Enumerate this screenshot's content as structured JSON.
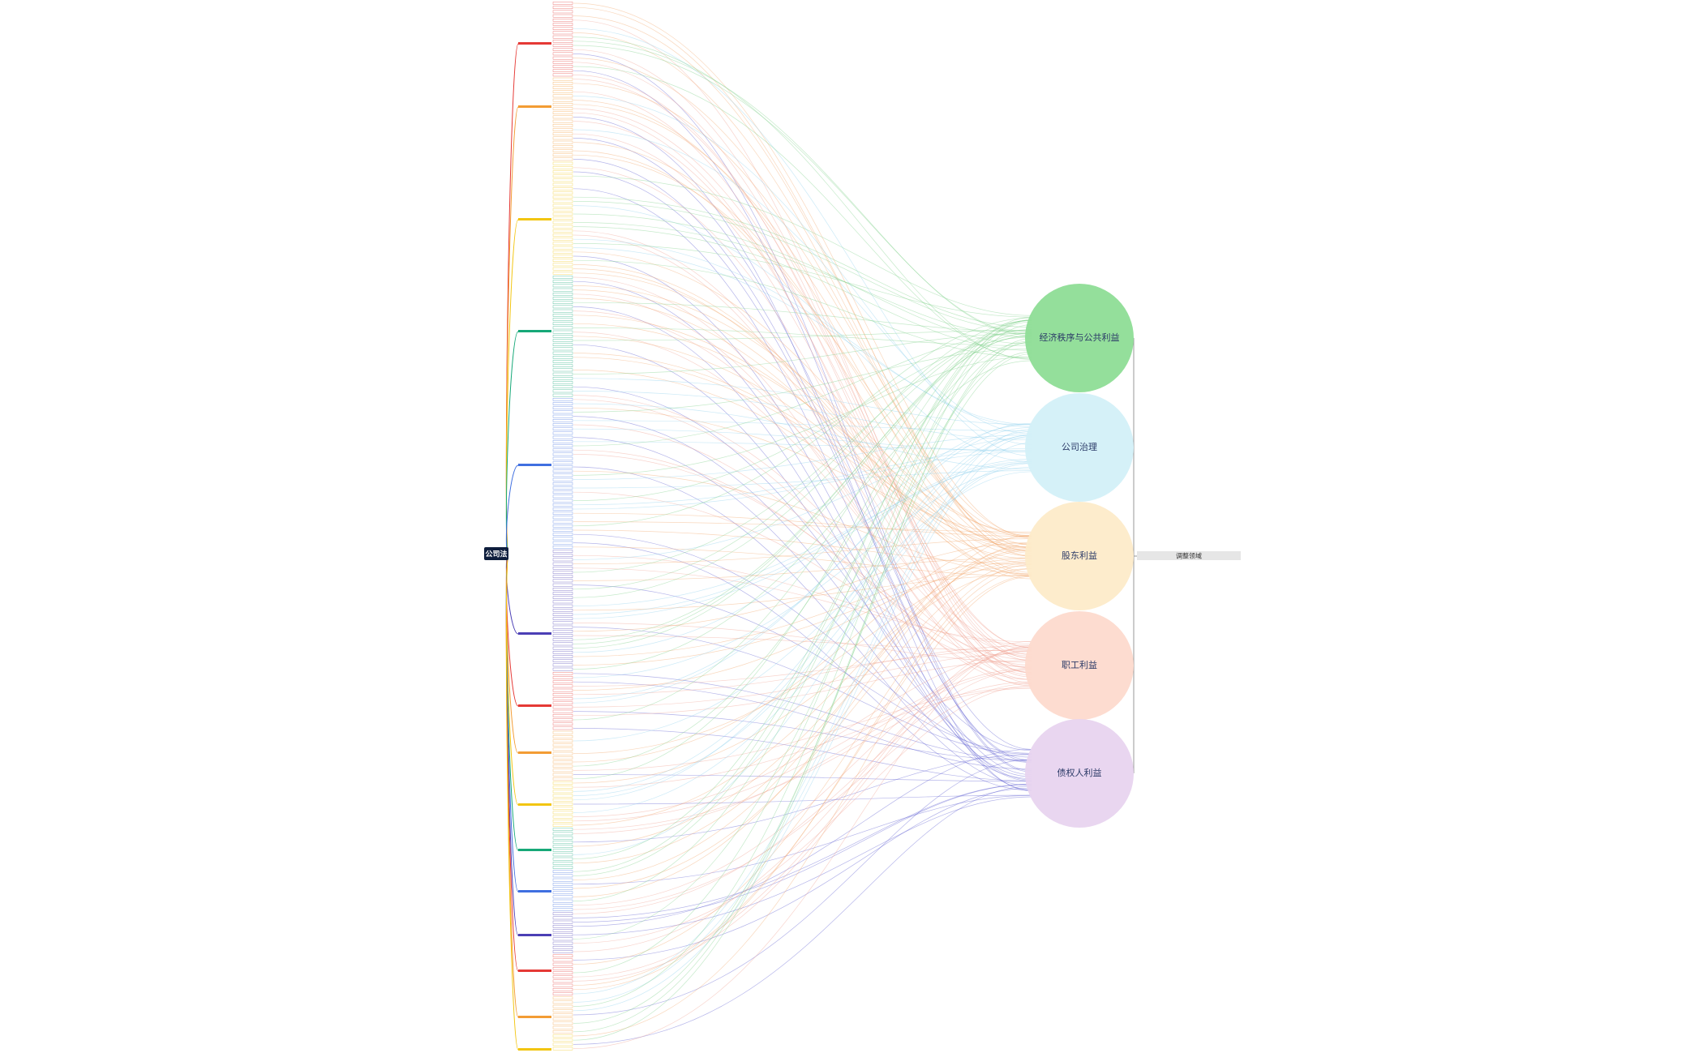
{
  "root": {
    "label": "公司法"
  },
  "group": {
    "label": "调整领域"
  },
  "nodes": [
    {
      "label": "经济秩序与公共利益",
      "color": "#8edd96"
    },
    {
      "label": "公司治理",
      "color": "#d3f0f8"
    },
    {
      "label": "股东利益",
      "color": "#fdebc9"
    },
    {
      "label": "职工利益",
      "color": "#fddacd"
    },
    {
      "label": "债权人利益",
      "color": "#e8d4ef"
    }
  ]
}
